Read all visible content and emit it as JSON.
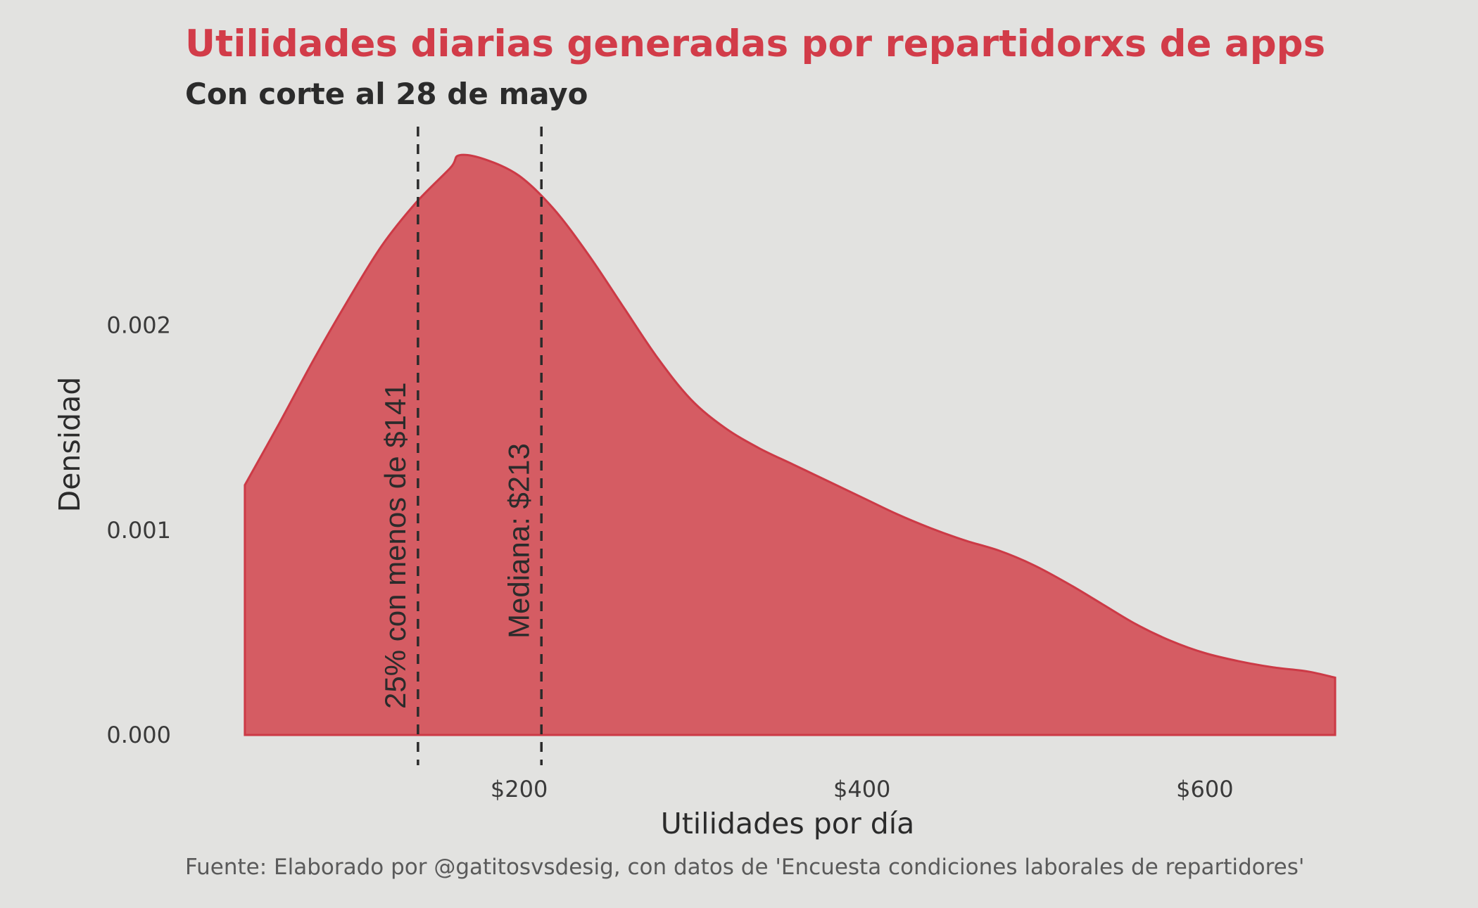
{
  "colors": {
    "background": "#e2e2e0",
    "fill": "#d55c63",
    "line": "#cc3a46",
    "title": "#d23c49",
    "text": "#2b2b2b"
  },
  "chart_data": {
    "type": "area",
    "title": "Utilidades diarias generadas por repartidorxs de apps",
    "subtitle": "Con corte al 28 de mayo",
    "xlabel": "Utilidades por día",
    "ylabel": "Densidad",
    "caption": "Fuente: Elaborado por @gatitosvsdesig, con datos de 'Encuesta condiciones laborales de repartidores'",
    "grid": false,
    "xlim": [
      38,
      676
    ],
    "ylim": [
      0,
      0.00285
    ],
    "x_ticks": [
      {
        "value": 200,
        "label": "$200"
      },
      {
        "value": 400,
        "label": "$400"
      },
      {
        "value": 600,
        "label": "$600"
      }
    ],
    "y_ticks": [
      {
        "value": 0.0,
        "label": "0.000"
      },
      {
        "value": 0.001,
        "label": "0.001"
      },
      {
        "value": 0.002,
        "label": "0.002"
      }
    ],
    "series": [
      {
        "x": [
          40,
          60,
          80,
          100,
          120,
          140,
          160,
          165,
          180,
          200,
          220,
          240,
          260,
          280,
          300,
          320,
          340,
          360,
          380,
          400,
          420,
          440,
          460,
          480,
          500,
          520,
          540,
          560,
          580,
          600,
          620,
          640,
          660,
          676
        ],
        "y": [
          0.00122,
          0.00152,
          0.00183,
          0.00212,
          0.00239,
          0.0026,
          0.00277,
          0.00283,
          0.00281,
          0.00273,
          0.00257,
          0.00235,
          0.0021,
          0.00185,
          0.00164,
          0.0015,
          0.0014,
          0.00132,
          0.00124,
          0.00116,
          0.00108,
          0.00101,
          0.00095,
          0.0009,
          0.00083,
          0.00074,
          0.00064,
          0.00054,
          0.00046,
          0.0004,
          0.00036,
          0.00033,
          0.00031,
          0.00028
        ]
      }
    ],
    "reference_lines": [
      {
        "x": 141,
        "label": "25% con menos de $141"
      },
      {
        "x": 213,
        "label": "Mediana: $213"
      }
    ]
  }
}
